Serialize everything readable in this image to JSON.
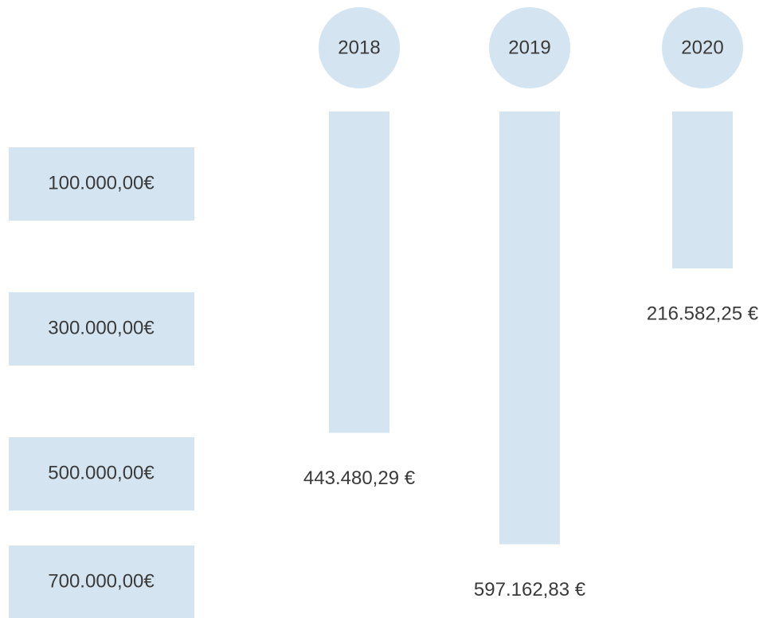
{
  "chart_data": {
    "type": "bar",
    "categories": [
      "2018",
      "2019",
      "2020"
    ],
    "values": [
      443480.29,
      597162.83,
      216582.25
    ],
    "value_labels": [
      "443.480,29 €",
      "597.162,83 €",
      "216.582,25 €"
    ],
    "color": "#d4e5f1",
    "ylim": [
      0,
      700000
    ],
    "yticks": [
      {
        "value": 100000,
        "label": "100.000,00€"
      },
      {
        "value": 300000,
        "label": "300.000,00€"
      },
      {
        "value": 500000,
        "label": "500.000,00€"
      },
      {
        "value": 700000,
        "label": "700.000,00€"
      }
    ]
  }
}
